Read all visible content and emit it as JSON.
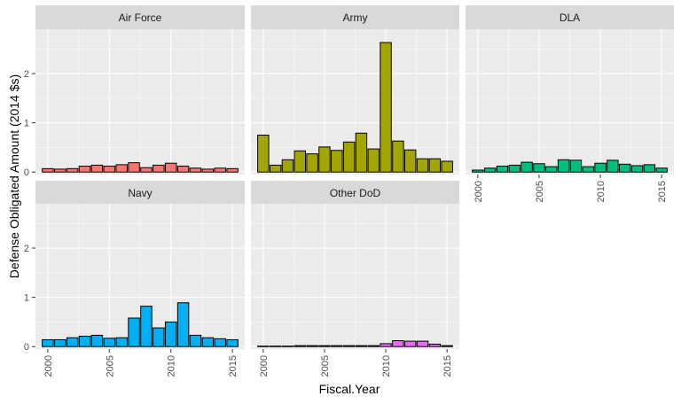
{
  "chart_data": {
    "type": "bar",
    "facet_layout": "wrap-3-columns",
    "xlabel": "Fiscal.Year",
    "ylabel": "Defense Obligated Amount (2014 $s)",
    "ylim": [
      -0.05,
      2.9
    ],
    "yticks": [
      0,
      1,
      2
    ],
    "xlim": [
      1999,
      2016
    ],
    "xticks": [
      2000,
      2005,
      2010,
      2015
    ],
    "x": [
      2000,
      2001,
      2002,
      2003,
      2004,
      2005,
      2006,
      2007,
      2008,
      2009,
      2010,
      2011,
      2012,
      2013,
      2014,
      2015
    ],
    "grid": true,
    "legend": "none",
    "panels": [
      {
        "name": "Air Force",
        "color": "#F8766D",
        "values": [
          0.07,
          0.06,
          0.07,
          0.12,
          0.14,
          0.12,
          0.15,
          0.19,
          0.09,
          0.14,
          0.18,
          0.12,
          0.08,
          0.06,
          0.08,
          0.07
        ]
      },
      {
        "name": "Army",
        "color": "#A3A500",
        "values": [
          0.75,
          0.14,
          0.25,
          0.43,
          0.37,
          0.51,
          0.44,
          0.61,
          0.79,
          0.47,
          2.63,
          0.63,
          0.45,
          0.27,
          0.27,
          0.22
        ]
      },
      {
        "name": "DLA",
        "color": "#00BF7D",
        "values": [
          0.04,
          0.08,
          0.12,
          0.14,
          0.2,
          0.17,
          0.11,
          0.25,
          0.24,
          0.11,
          0.18,
          0.24,
          0.16,
          0.13,
          0.15,
          0.08
        ]
      },
      {
        "name": "Navy",
        "color": "#00B0F6",
        "values": [
          0.14,
          0.14,
          0.18,
          0.21,
          0.23,
          0.17,
          0.18,
          0.58,
          0.82,
          0.38,
          0.5,
          0.89,
          0.23,
          0.18,
          0.16,
          0.14
        ]
      },
      {
        "name": "Other DoD",
        "color": "#E76BF3",
        "values": [
          0.01,
          0.01,
          0.01,
          0.02,
          0.02,
          0.02,
          0.02,
          0.02,
          0.02,
          0.02,
          0.06,
          0.12,
          0.11,
          0.11,
          0.05,
          0.02
        ]
      }
    ]
  },
  "colors": {
    "panel_background": "#EBEBEB",
    "strip_background": "#D9D9D9",
    "grid_major": "#FFFFFF",
    "bar_outline": "#000000"
  }
}
